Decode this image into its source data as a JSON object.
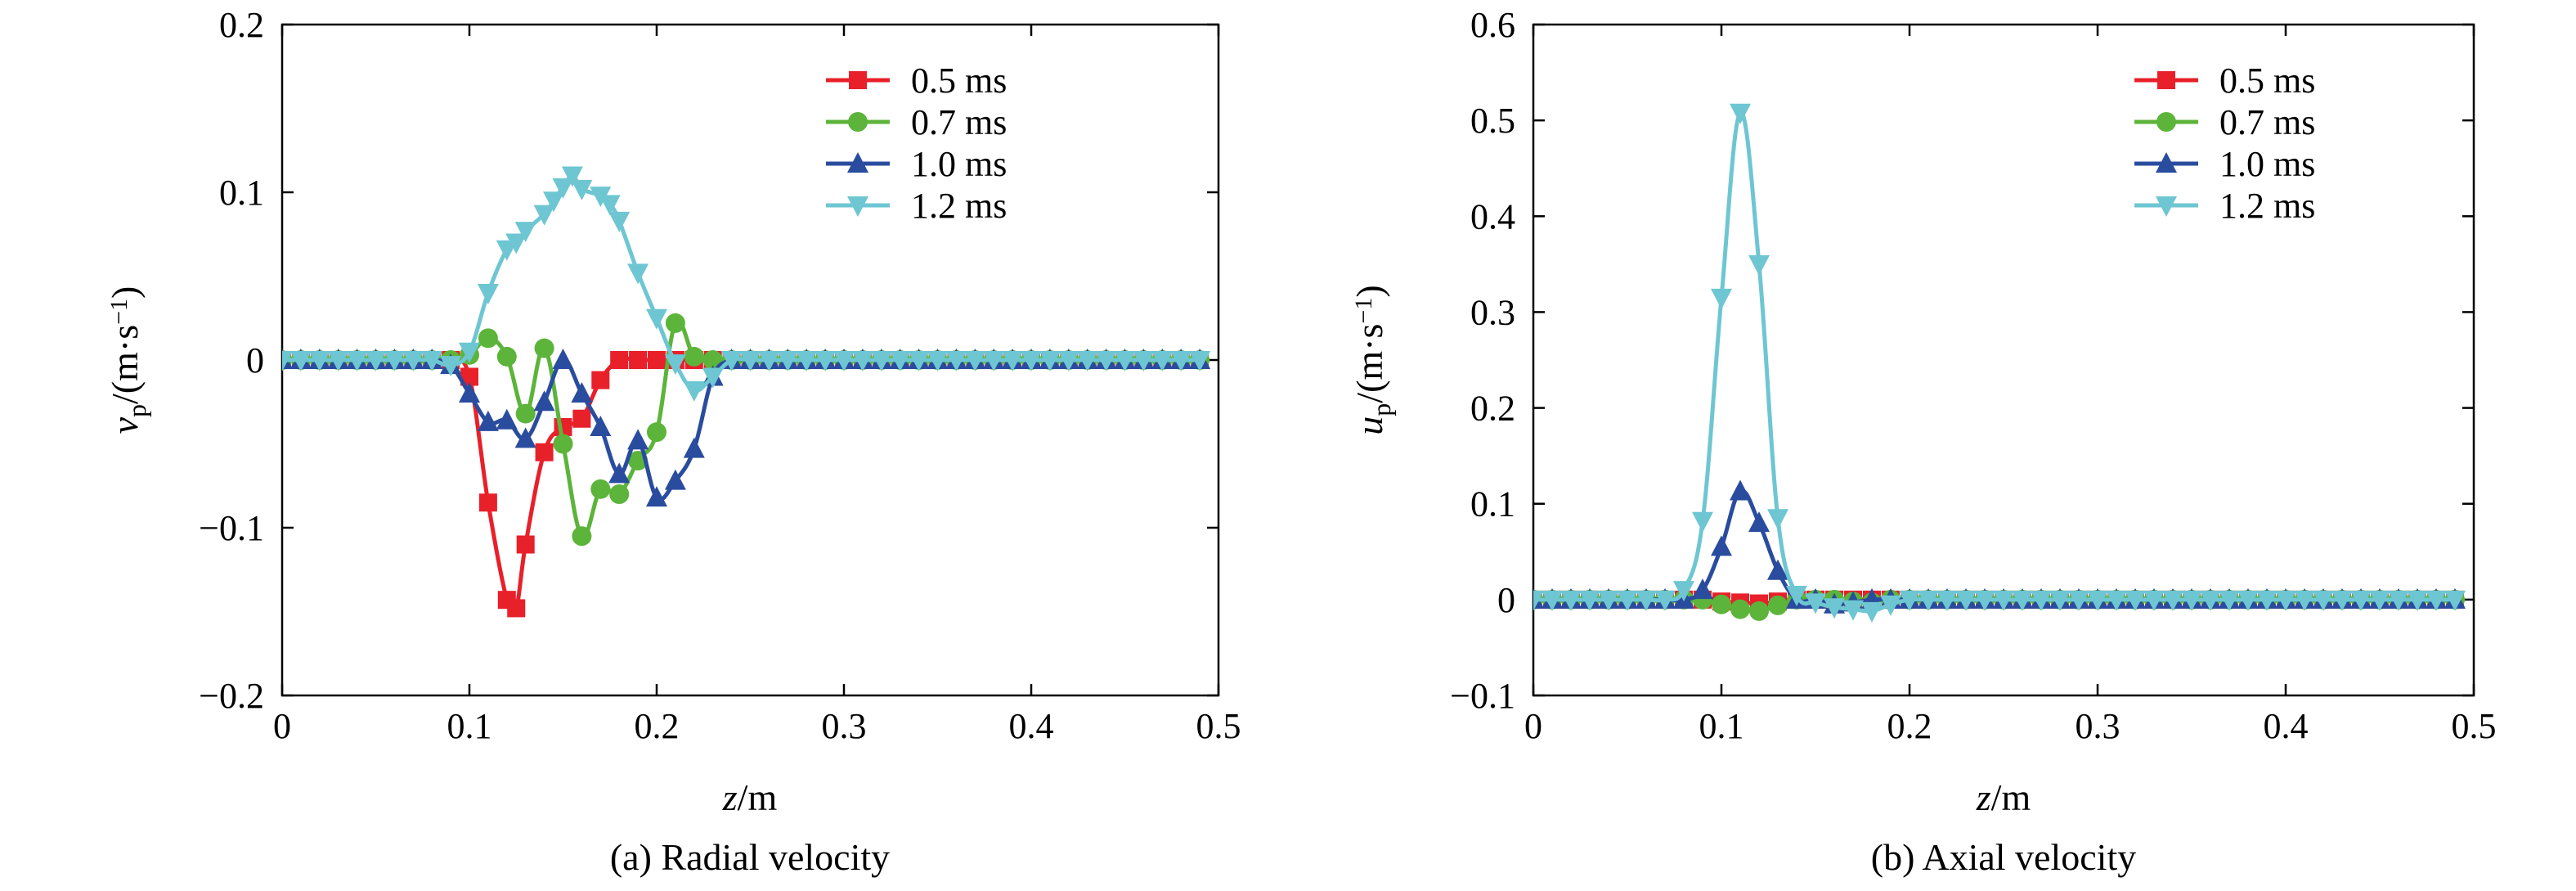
{
  "figure": {
    "panels": [
      {
        "caption": "(a) Radial velocity",
        "ylabel_sym": "v",
        "ylabel_sub": "p",
        "ylabel_unit": "/(m·s",
        "ylabel_exp": "−1",
        "ylabel_close": ")",
        "xlabel_sym": "z",
        "xlabel_unit": "/m"
      },
      {
        "caption": "(b) Axial velocity",
        "ylabel_sym": "u",
        "ylabel_sub": "p",
        "ylabel_unit": "/(m·s",
        "ylabel_exp": "−1",
        "ylabel_close": ")",
        "xlabel_sym": "z",
        "xlabel_unit": "/m"
      }
    ]
  },
  "chart_data": [
    {
      "type": "line",
      "caption": "(a) Radial velocity",
      "xlabel": "z/m",
      "ylabel": "v_p/(m·s^−1)",
      "xlim": [
        0,
        0.5
      ],
      "ylim": [
        -0.2,
        0.2
      ],
      "xticks": [
        0,
        0.1,
        0.2,
        0.3,
        0.4,
        0.5
      ],
      "xtick_labels": [
        "0",
        "0.1",
        "0.2",
        "0.3",
        "0.4",
        "0.5"
      ],
      "yticks": [
        -0.2,
        -0.1,
        0,
        0.1,
        0.2
      ],
      "ytick_labels": [
        "−0.2",
        "−0.1",
        "0",
        "0.1",
        "0.2"
      ],
      "grid": false,
      "legend": "top-right",
      "series": [
        {
          "name": "0.5 ms",
          "color": "#e8202a",
          "marker": "square",
          "x": [
            0,
            0.01,
            0.02,
            0.03,
            0.04,
            0.05,
            0.06,
            0.07,
            0.08,
            0.09,
            0.1,
            0.11,
            0.12,
            0.125,
            0.13,
            0.14,
            0.15,
            0.16,
            0.17,
            0.18,
            0.19,
            0.2,
            0.21,
            0.22,
            0.23,
            0.24,
            0.25,
            0.26,
            0.27,
            0.28,
            0.29,
            0.3,
            0.31,
            0.32,
            0.33,
            0.34,
            0.35,
            0.36,
            0.37,
            0.38,
            0.39,
            0.4,
            0.41,
            0.42,
            0.43,
            0.44,
            0.45,
            0.46,
            0.47,
            0.48,
            0.49
          ],
          "y": [
            0,
            0,
            0,
            0,
            0,
            0,
            0,
            0,
            0,
            0,
            -0.01,
            -0.085,
            -0.143,
            -0.148,
            -0.11,
            -0.055,
            -0.04,
            -0.035,
            -0.012,
            0,
            0,
            0,
            0,
            0,
            0,
            0,
            0,
            0,
            0,
            0,
            0,
            0,
            0,
            0,
            0,
            0,
            0,
            0,
            0,
            0,
            0,
            0,
            0,
            0,
            0,
            0,
            0,
            0,
            0,
            0,
            0
          ]
        },
        {
          "name": "0.7 ms",
          "color": "#5cb43a",
          "marker": "circle",
          "x": [
            0,
            0.01,
            0.02,
            0.03,
            0.04,
            0.05,
            0.06,
            0.07,
            0.08,
            0.09,
            0.1,
            0.11,
            0.12,
            0.13,
            0.14,
            0.15,
            0.16,
            0.17,
            0.18,
            0.19,
            0.2,
            0.21,
            0.22,
            0.23,
            0.24,
            0.25,
            0.26,
            0.27,
            0.28,
            0.29,
            0.3,
            0.31,
            0.32,
            0.33,
            0.34,
            0.35,
            0.36,
            0.37,
            0.38,
            0.39,
            0.4,
            0.41,
            0.42,
            0.43,
            0.44,
            0.45,
            0.46,
            0.47,
            0.48,
            0.49
          ],
          "y": [
            0,
            0,
            0,
            0,
            0,
            0,
            0,
            0,
            0,
            0,
            0.003,
            0.013,
            0.002,
            -0.032,
            0.007,
            -0.05,
            -0.105,
            -0.077,
            -0.08,
            -0.06,
            -0.043,
            0.022,
            0.002,
            0,
            0,
            0,
            0,
            0,
            0,
            0,
            0,
            0,
            0,
            0,
            0,
            0,
            0,
            0,
            0,
            0,
            0,
            0,
            0,
            0,
            0,
            0,
            0,
            0,
            0,
            0
          ]
        },
        {
          "name": "1.0 ms",
          "color": "#2a4c9e",
          "marker": "triangle-up",
          "x": [
            0,
            0.01,
            0.02,
            0.03,
            0.04,
            0.05,
            0.06,
            0.07,
            0.08,
            0.09,
            0.1,
            0.11,
            0.12,
            0.13,
            0.14,
            0.15,
            0.16,
            0.17,
            0.18,
            0.19,
            0.2,
            0.21,
            0.22,
            0.23,
            0.24,
            0.25,
            0.26,
            0.27,
            0.28,
            0.29,
            0.3,
            0.31,
            0.32,
            0.33,
            0.34,
            0.35,
            0.36,
            0.37,
            0.38,
            0.39,
            0.4,
            0.41,
            0.42,
            0.43,
            0.44,
            0.45,
            0.46,
            0.47,
            0.48,
            0.49
          ],
          "y": [
            0,
            0,
            0,
            0,
            0,
            0,
            0,
            0,
            0,
            -0.003,
            -0.02,
            -0.037,
            -0.036,
            -0.047,
            -0.025,
            0,
            -0.02,
            -0.04,
            -0.068,
            -0.048,
            -0.082,
            -0.072,
            -0.053,
            -0.01,
            0,
            0,
            0,
            0,
            0,
            0,
            0,
            0,
            0,
            0,
            0,
            0,
            0,
            0,
            0,
            0,
            0,
            0,
            0,
            0,
            0,
            0,
            0,
            0,
            0,
            0
          ]
        },
        {
          "name": "1.2 ms",
          "color": "#6ec6d2",
          "marker": "triangle-down",
          "x": [
            0,
            0.01,
            0.02,
            0.03,
            0.04,
            0.05,
            0.06,
            0.07,
            0.08,
            0.09,
            0.1,
            0.11,
            0.12,
            0.125,
            0.13,
            0.14,
            0.145,
            0.15,
            0.155,
            0.16,
            0.17,
            0.175,
            0.18,
            0.19,
            0.2,
            0.21,
            0.22,
            0.23,
            0.24,
            0.25,
            0.26,
            0.27,
            0.28,
            0.29,
            0.3,
            0.31,
            0.32,
            0.33,
            0.34,
            0.35,
            0.36,
            0.37,
            0.38,
            0.39,
            0.4,
            0.41,
            0.42,
            0.43,
            0.44,
            0.45,
            0.46,
            0.47,
            0.48,
            0.49
          ],
          "y": [
            0,
            0,
            0,
            0,
            0,
            0,
            0,
            0,
            0,
            -0.003,
            0.005,
            0.04,
            0.066,
            0.07,
            0.077,
            0.087,
            0.095,
            0.103,
            0.11,
            0.102,
            0.098,
            0.093,
            0.083,
            0.052,
            0.025,
            -0.002,
            -0.018,
            -0.01,
            0,
            0,
            0,
            0,
            0,
            0,
            0,
            0,
            0,
            0,
            0,
            0,
            0,
            0,
            0,
            0,
            0,
            0,
            0,
            0,
            0,
            0,
            0,
            0,
            0,
            0
          ]
        }
      ]
    },
    {
      "type": "line",
      "caption": "(b) Axial velocity",
      "xlabel": "z/m",
      "ylabel": "u_p/(m·s^−1)",
      "xlim": [
        0,
        0.5
      ],
      "ylim": [
        -0.1,
        0.6
      ],
      "xticks": [
        0,
        0.1,
        0.2,
        0.3,
        0.4,
        0.5
      ],
      "xtick_labels": [
        "0",
        "0.1",
        "0.2",
        "0.3",
        "0.4",
        "0.5"
      ],
      "yticks": [
        -0.1,
        0,
        0.1,
        0.2,
        0.3,
        0.4,
        0.5,
        0.6
      ],
      "ytick_labels": [
        "−0.1",
        "0",
        "0.1",
        "0.2",
        "0.3",
        "0.4",
        "0.5",
        "0.6"
      ],
      "grid": false,
      "legend": "top-right",
      "series": [
        {
          "name": "0.5 ms",
          "color": "#e8202a",
          "marker": "square",
          "x": [
            0,
            0.01,
            0.02,
            0.03,
            0.04,
            0.05,
            0.06,
            0.07,
            0.08,
            0.09,
            0.1,
            0.11,
            0.12,
            0.13,
            0.14,
            0.15,
            0.16,
            0.17,
            0.18,
            0.19,
            0.2,
            0.21,
            0.22,
            0.23,
            0.24,
            0.25,
            0.26,
            0.27,
            0.28,
            0.29,
            0.3,
            0.31,
            0.32,
            0.33,
            0.34,
            0.35,
            0.36,
            0.37,
            0.38,
            0.39,
            0.4,
            0.41,
            0.42,
            0.43,
            0.44,
            0.45,
            0.46,
            0.47,
            0.48,
            0.49
          ],
          "y": [
            0,
            0,
            0,
            0,
            0,
            0,
            0,
            0,
            0,
            0,
            -0.002,
            -0.003,
            -0.004,
            -0.002,
            0,
            0,
            0,
            0,
            0,
            0,
            0,
            0,
            0,
            0,
            0,
            0,
            0,
            0,
            0,
            0,
            0,
            0,
            0,
            0,
            0,
            0,
            0,
            0,
            0,
            0,
            0,
            0,
            0,
            0,
            0,
            0,
            0,
            0,
            0,
            0
          ]
        },
        {
          "name": "0.7 ms",
          "color": "#5cb43a",
          "marker": "circle",
          "x": [
            0,
            0.01,
            0.02,
            0.03,
            0.04,
            0.05,
            0.06,
            0.07,
            0.08,
            0.09,
            0.1,
            0.11,
            0.12,
            0.13,
            0.14,
            0.15,
            0.16,
            0.17,
            0.18,
            0.19,
            0.2,
            0.21,
            0.22,
            0.23,
            0.24,
            0.25,
            0.26,
            0.27,
            0.28,
            0.29,
            0.3,
            0.31,
            0.32,
            0.33,
            0.34,
            0.35,
            0.36,
            0.37,
            0.38,
            0.39,
            0.4,
            0.41,
            0.42,
            0.43,
            0.44,
            0.45,
            0.46,
            0.47,
            0.48,
            0.49
          ],
          "y": [
            0,
            0,
            0,
            0,
            0,
            0,
            0,
            0,
            0,
            0,
            -0.005,
            -0.01,
            -0.012,
            -0.006,
            0,
            0,
            0,
            -0.002,
            -0.003,
            0,
            0,
            0,
            0,
            0,
            0,
            0,
            0,
            0,
            0,
            0,
            0,
            0,
            0,
            0,
            0,
            0,
            0,
            0,
            0,
            0,
            0,
            0,
            0,
            0,
            0,
            0,
            0,
            0,
            0,
            0
          ]
        },
        {
          "name": "1.0 ms",
          "color": "#2a4c9e",
          "marker": "triangle-up",
          "x": [
            0,
            0.01,
            0.02,
            0.03,
            0.04,
            0.05,
            0.06,
            0.07,
            0.08,
            0.09,
            0.1,
            0.11,
            0.12,
            0.13,
            0.14,
            0.15,
            0.16,
            0.17,
            0.18,
            0.19,
            0.2,
            0.21,
            0.22,
            0.23,
            0.24,
            0.25,
            0.26,
            0.27,
            0.28,
            0.29,
            0.3,
            0.31,
            0.32,
            0.33,
            0.34,
            0.35,
            0.36,
            0.37,
            0.38,
            0.39,
            0.4,
            0.41,
            0.42,
            0.43,
            0.44,
            0.45,
            0.46,
            0.47,
            0.48,
            0.49
          ],
          "y": [
            0,
            0,
            0,
            0,
            0,
            0,
            0,
            0,
            0,
            0.01,
            0.055,
            0.113,
            0.08,
            0.03,
            0,
            0,
            -0.005,
            -0.003,
            0,
            0,
            0,
            0,
            0,
            0,
            0,
            0,
            0,
            0,
            0,
            0,
            0,
            0,
            0,
            0,
            0,
            0,
            0,
            0,
            0,
            0,
            0,
            0,
            0,
            0,
            0,
            0,
            0,
            0,
            0,
            0
          ]
        },
        {
          "name": "1.2 ms",
          "color": "#6ec6d2",
          "marker": "triangle-down",
          "x": [
            0,
            0.01,
            0.02,
            0.03,
            0.04,
            0.05,
            0.06,
            0.07,
            0.08,
            0.09,
            0.1,
            0.11,
            0.12,
            0.13,
            0.14,
            0.15,
            0.16,
            0.17,
            0.18,
            0.19,
            0.2,
            0.21,
            0.22,
            0.23,
            0.24,
            0.25,
            0.26,
            0.27,
            0.28,
            0.29,
            0.3,
            0.31,
            0.32,
            0.33,
            0.34,
            0.35,
            0.36,
            0.37,
            0.38,
            0.39,
            0.4,
            0.41,
            0.42,
            0.43,
            0.44,
            0.45,
            0.46,
            0.47,
            0.48,
            0.49
          ],
          "y": [
            0,
            0,
            0,
            0,
            0,
            0,
            0,
            0,
            0.01,
            0.082,
            0.315,
            0.508,
            0.35,
            0.085,
            0.005,
            -0.003,
            -0.008,
            -0.01,
            -0.012,
            -0.005,
            0,
            0,
            0,
            0,
            0,
            0,
            0,
            0,
            0,
            0,
            0,
            0,
            0,
            0,
            0,
            0,
            0,
            0,
            0,
            0,
            0,
            0,
            0,
            0,
            0,
            0,
            0,
            0,
            0,
            0
          ]
        }
      ]
    }
  ]
}
